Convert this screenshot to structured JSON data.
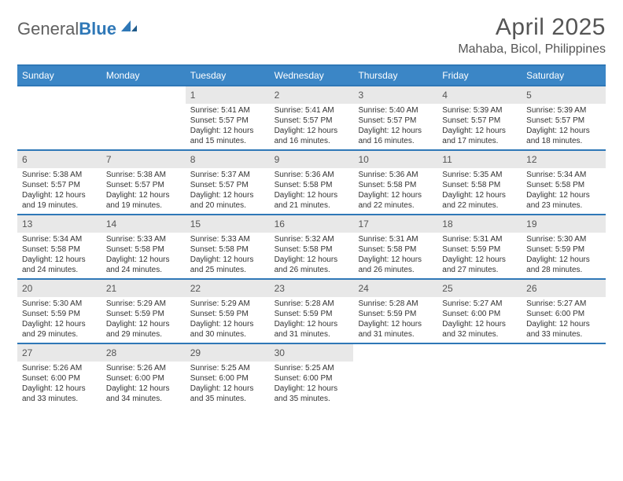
{
  "logo": {
    "text1": "General",
    "text2": "Blue"
  },
  "title": "April 2025",
  "location": "Mahaba, Bicol, Philippines",
  "colors": {
    "header_bg": "#3b86c6",
    "border": "#2f78b7",
    "daynum_bg": "#e8e8e8",
    "text": "#333333",
    "muted": "#555555"
  },
  "dow": [
    "Sunday",
    "Monday",
    "Tuesday",
    "Wednesday",
    "Thursday",
    "Friday",
    "Saturday"
  ],
  "weeks": [
    [
      null,
      null,
      {
        "n": "1",
        "lines": [
          "Sunrise: 5:41 AM",
          "Sunset: 5:57 PM",
          "Daylight: 12 hours",
          "and 15 minutes."
        ]
      },
      {
        "n": "2",
        "lines": [
          "Sunrise: 5:41 AM",
          "Sunset: 5:57 PM",
          "Daylight: 12 hours",
          "and 16 minutes."
        ]
      },
      {
        "n": "3",
        "lines": [
          "Sunrise: 5:40 AM",
          "Sunset: 5:57 PM",
          "Daylight: 12 hours",
          "and 16 minutes."
        ]
      },
      {
        "n": "4",
        "lines": [
          "Sunrise: 5:39 AM",
          "Sunset: 5:57 PM",
          "Daylight: 12 hours",
          "and 17 minutes."
        ]
      },
      {
        "n": "5",
        "lines": [
          "Sunrise: 5:39 AM",
          "Sunset: 5:57 PM",
          "Daylight: 12 hours",
          "and 18 minutes."
        ]
      }
    ],
    [
      {
        "n": "6",
        "lines": [
          "Sunrise: 5:38 AM",
          "Sunset: 5:57 PM",
          "Daylight: 12 hours",
          "and 19 minutes."
        ]
      },
      {
        "n": "7",
        "lines": [
          "Sunrise: 5:38 AM",
          "Sunset: 5:57 PM",
          "Daylight: 12 hours",
          "and 19 minutes."
        ]
      },
      {
        "n": "8",
        "lines": [
          "Sunrise: 5:37 AM",
          "Sunset: 5:57 PM",
          "Daylight: 12 hours",
          "and 20 minutes."
        ]
      },
      {
        "n": "9",
        "lines": [
          "Sunrise: 5:36 AM",
          "Sunset: 5:58 PM",
          "Daylight: 12 hours",
          "and 21 minutes."
        ]
      },
      {
        "n": "10",
        "lines": [
          "Sunrise: 5:36 AM",
          "Sunset: 5:58 PM",
          "Daylight: 12 hours",
          "and 22 minutes."
        ]
      },
      {
        "n": "11",
        "lines": [
          "Sunrise: 5:35 AM",
          "Sunset: 5:58 PM",
          "Daylight: 12 hours",
          "and 22 minutes."
        ]
      },
      {
        "n": "12",
        "lines": [
          "Sunrise: 5:34 AM",
          "Sunset: 5:58 PM",
          "Daylight: 12 hours",
          "and 23 minutes."
        ]
      }
    ],
    [
      {
        "n": "13",
        "lines": [
          "Sunrise: 5:34 AM",
          "Sunset: 5:58 PM",
          "Daylight: 12 hours",
          "and 24 minutes."
        ]
      },
      {
        "n": "14",
        "lines": [
          "Sunrise: 5:33 AM",
          "Sunset: 5:58 PM",
          "Daylight: 12 hours",
          "and 24 minutes."
        ]
      },
      {
        "n": "15",
        "lines": [
          "Sunrise: 5:33 AM",
          "Sunset: 5:58 PM",
          "Daylight: 12 hours",
          "and 25 minutes."
        ]
      },
      {
        "n": "16",
        "lines": [
          "Sunrise: 5:32 AM",
          "Sunset: 5:58 PM",
          "Daylight: 12 hours",
          "and 26 minutes."
        ]
      },
      {
        "n": "17",
        "lines": [
          "Sunrise: 5:31 AM",
          "Sunset: 5:58 PM",
          "Daylight: 12 hours",
          "and 26 minutes."
        ]
      },
      {
        "n": "18",
        "lines": [
          "Sunrise: 5:31 AM",
          "Sunset: 5:59 PM",
          "Daylight: 12 hours",
          "and 27 minutes."
        ]
      },
      {
        "n": "19",
        "lines": [
          "Sunrise: 5:30 AM",
          "Sunset: 5:59 PM",
          "Daylight: 12 hours",
          "and 28 minutes."
        ]
      }
    ],
    [
      {
        "n": "20",
        "lines": [
          "Sunrise: 5:30 AM",
          "Sunset: 5:59 PM",
          "Daylight: 12 hours",
          "and 29 minutes."
        ]
      },
      {
        "n": "21",
        "lines": [
          "Sunrise: 5:29 AM",
          "Sunset: 5:59 PM",
          "Daylight: 12 hours",
          "and 29 minutes."
        ]
      },
      {
        "n": "22",
        "lines": [
          "Sunrise: 5:29 AM",
          "Sunset: 5:59 PM",
          "Daylight: 12 hours",
          "and 30 minutes."
        ]
      },
      {
        "n": "23",
        "lines": [
          "Sunrise: 5:28 AM",
          "Sunset: 5:59 PM",
          "Daylight: 12 hours",
          "and 31 minutes."
        ]
      },
      {
        "n": "24",
        "lines": [
          "Sunrise: 5:28 AM",
          "Sunset: 5:59 PM",
          "Daylight: 12 hours",
          "and 31 minutes."
        ]
      },
      {
        "n": "25",
        "lines": [
          "Sunrise: 5:27 AM",
          "Sunset: 6:00 PM",
          "Daylight: 12 hours",
          "and 32 minutes."
        ]
      },
      {
        "n": "26",
        "lines": [
          "Sunrise: 5:27 AM",
          "Sunset: 6:00 PM",
          "Daylight: 12 hours",
          "and 33 minutes."
        ]
      }
    ],
    [
      {
        "n": "27",
        "lines": [
          "Sunrise: 5:26 AM",
          "Sunset: 6:00 PM",
          "Daylight: 12 hours",
          "and 33 minutes."
        ]
      },
      {
        "n": "28",
        "lines": [
          "Sunrise: 5:26 AM",
          "Sunset: 6:00 PM",
          "Daylight: 12 hours",
          "and 34 minutes."
        ]
      },
      {
        "n": "29",
        "lines": [
          "Sunrise: 5:25 AM",
          "Sunset: 6:00 PM",
          "Daylight: 12 hours",
          "and 35 minutes."
        ]
      },
      {
        "n": "30",
        "lines": [
          "Sunrise: 5:25 AM",
          "Sunset: 6:00 PM",
          "Daylight: 12 hours",
          "and 35 minutes."
        ]
      },
      null,
      null,
      null
    ]
  ]
}
